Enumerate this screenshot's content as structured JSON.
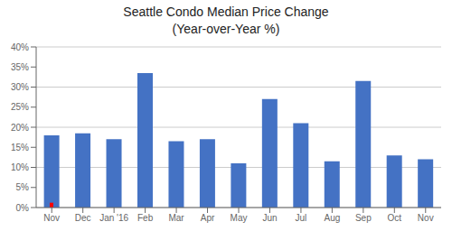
{
  "chart_data": {
    "type": "bar",
    "title": "Seattle Condo Median Price Change",
    "subtitle": "(Year-over-Year %)",
    "categories": [
      "Nov",
      "Dec",
      "Jan '16",
      "Feb",
      "Mar",
      "Apr",
      "May",
      "Jun",
      "Jul",
      "Aug",
      "Sep",
      "Oct",
      "Nov"
    ],
    "series": [
      {
        "color": "#4472C4",
        "values": [
          18.0,
          18.5,
          17.0,
          33.5,
          16.5,
          17.0,
          11.0,
          27.0,
          21.0,
          11.5,
          31.5,
          13.0,
          12.0
        ]
      },
      {
        "color": "#FF0000",
        "values": [
          1.2,
          null,
          null,
          null,
          null,
          null,
          null,
          null,
          null,
          null,
          null,
          null,
          null
        ]
      }
    ],
    "ylim": [
      0,
      40
    ],
    "yticks": [
      {
        "value": 0,
        "label": "0%"
      },
      {
        "value": 5,
        "label": "5%"
      },
      {
        "value": 10,
        "label": "10%"
      },
      {
        "value": 15,
        "label": "15%"
      },
      {
        "value": 20,
        "label": "20%"
      },
      {
        "value": 25,
        "label": "25%"
      },
      {
        "value": 30,
        "label": "30%"
      },
      {
        "value": 35,
        "label": "35%"
      },
      {
        "value": 40,
        "label": "40%"
      }
    ],
    "grid": true
  }
}
